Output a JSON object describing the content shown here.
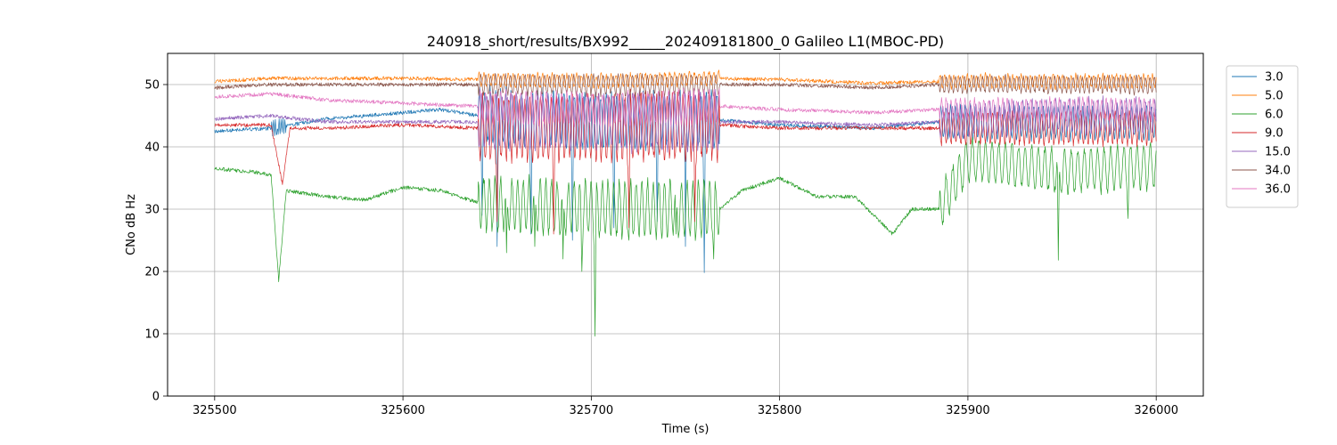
{
  "chart_data": {
    "type": "line",
    "title": "240918_short/results/BX992_____202409181800_0 Galileo L1(MBOC-PD)",
    "xlabel": "Time (s)",
    "ylabel": "CNo dB Hz",
    "xlim": [
      325475,
      326025
    ],
    "ylim": [
      0,
      55
    ],
    "xticks": [
      325500,
      325600,
      325700,
      325800,
      325900,
      326000
    ],
    "yticks": [
      0,
      10,
      20,
      30,
      40,
      50
    ],
    "grid": true,
    "legend_position": "upper-right-outside",
    "series": [
      {
        "name": "3.0",
        "color": "#1f77b4",
        "base": [
          [
            325500,
            42.5
          ],
          [
            325530,
            43
          ],
          [
            325560,
            44.5
          ],
          [
            325600,
            45.5
          ],
          [
            325620,
            46
          ],
          [
            325640,
            45
          ],
          [
            325700,
            44
          ],
          [
            325760,
            44.5
          ],
          [
            325800,
            43.5
          ],
          [
            325850,
            43
          ],
          [
            325885,
            44
          ],
          [
            325940,
            44
          ],
          [
            326000,
            44
          ]
        ],
        "spans": [
          {
            "x0": 325530,
            "x1": 325538,
            "amp": 1.5,
            "period": 1.0,
            "spikes": [
              [
                325533,
                42
              ]
            ]
          },
          {
            "x0": 325640,
            "x1": 325768,
            "amp": 5,
            "period": 2.8,
            "spikes": [
              [
                325642,
                29
              ],
              [
                325650,
                24
              ],
              [
                325668,
                26
              ],
              [
                325690,
                25
              ],
              [
                325712,
                27
              ],
              [
                325735,
                28
              ],
              [
                325750,
                24
              ],
              [
                325760,
                19.8
              ]
            ]
          },
          {
            "x0": 325885,
            "x1": 326000,
            "amp": 3,
            "period": 2.6,
            "spikes": []
          }
        ]
      },
      {
        "name": "5.0",
        "color": "#ff7f0e",
        "base": [
          [
            325500,
            50.5
          ],
          [
            325530,
            51
          ],
          [
            325560,
            51
          ],
          [
            325600,
            51
          ],
          [
            325640,
            50.8
          ],
          [
            325700,
            50.5
          ],
          [
            325760,
            51
          ],
          [
            325800,
            50.8
          ],
          [
            325850,
            50.2
          ],
          [
            325885,
            50.5
          ],
          [
            325940,
            50.5
          ],
          [
            326000,
            50.5
          ]
        ],
        "spans": [
          {
            "x0": 325640,
            "x1": 325768,
            "amp": 1.2,
            "period": 2.6,
            "spikes": []
          },
          {
            "x0": 325885,
            "x1": 326000,
            "amp": 1.2,
            "period": 2.4,
            "spikes": []
          }
        ]
      },
      {
        "name": "6.0",
        "color": "#2ca02c",
        "base": [
          [
            325500,
            36.5
          ],
          [
            325520,
            36
          ],
          [
            325530,
            35.5
          ],
          [
            325534,
            18.5
          ],
          [
            325538,
            33
          ],
          [
            325560,
            32
          ],
          [
            325580,
            31.5
          ],
          [
            325600,
            33.5
          ],
          [
            325620,
            33
          ],
          [
            325640,
            31
          ],
          [
            325700,
            30
          ],
          [
            325768,
            30
          ],
          [
            325780,
            33
          ],
          [
            325800,
            35
          ],
          [
            325820,
            32
          ],
          [
            325840,
            32
          ],
          [
            325860,
            26
          ],
          [
            325870,
            30
          ],
          [
            325885,
            30
          ],
          [
            325900,
            38
          ],
          [
            325950,
            36
          ],
          [
            326000,
            37
          ]
        ],
        "spans": [
          {
            "x0": 325640,
            "x1": 325768,
            "amp": 5,
            "period": 3.0,
            "spikes": [
              [
                325655,
                23
              ],
              [
                325670,
                24
              ],
              [
                325685,
                22
              ],
              [
                325695,
                20
              ],
              [
                325702,
                9.6
              ],
              [
                325720,
                25
              ],
              [
                325745,
                26
              ],
              [
                325765,
                22
              ]
            ]
          },
          {
            "x0": 325885,
            "x1": 326000,
            "amp": 4,
            "period": 3.5,
            "spikes": [
              [
                325948,
                21.8
              ],
              [
                325985,
                28.5
              ]
            ]
          }
        ]
      },
      {
        "name": "9.0",
        "color": "#d62728",
        "base": [
          [
            325500,
            43.5
          ],
          [
            325530,
            43.5
          ],
          [
            325536,
            34
          ],
          [
            325540,
            43
          ],
          [
            325560,
            43
          ],
          [
            325600,
            43.5
          ],
          [
            325640,
            43
          ],
          [
            325700,
            43
          ],
          [
            325768,
            43.5
          ],
          [
            325800,
            43
          ],
          [
            325850,
            43
          ],
          [
            325885,
            43
          ],
          [
            325940,
            43
          ],
          [
            326000,
            43
          ]
        ],
        "spans": [
          {
            "x0": 325640,
            "x1": 325768,
            "amp": 6,
            "period": 2.8,
            "spikes": [
              [
                325650,
                28
              ],
              [
                325680,
                26
              ],
              [
                325720,
                27
              ],
              [
                325755,
                28
              ]
            ]
          },
          {
            "x0": 325885,
            "x1": 326000,
            "amp": 3,
            "period": 2.6,
            "spikes": []
          }
        ]
      },
      {
        "name": "15.0",
        "color": "#9467bd",
        "base": [
          [
            325500,
            44.5
          ],
          [
            325530,
            45
          ],
          [
            325560,
            44
          ],
          [
            325600,
            44
          ],
          [
            325640,
            44
          ],
          [
            325700,
            44
          ],
          [
            325768,
            44
          ],
          [
            325800,
            44
          ],
          [
            325850,
            43.5
          ],
          [
            325885,
            44
          ],
          [
            325940,
            45
          ],
          [
            326000,
            45
          ]
        ],
        "spans": [
          {
            "x0": 325640,
            "x1": 325768,
            "amp": 5,
            "period": 2.7,
            "spikes": []
          },
          {
            "x0": 325885,
            "x1": 326000,
            "amp": 3,
            "period": 2.5,
            "spikes": []
          }
        ]
      },
      {
        "name": "34.0",
        "color": "#8c564b",
        "base": [
          [
            325500,
            49.5
          ],
          [
            325530,
            50
          ],
          [
            325560,
            50
          ],
          [
            325600,
            50
          ],
          [
            325640,
            50
          ],
          [
            325700,
            50
          ],
          [
            325768,
            50
          ],
          [
            325800,
            50
          ],
          [
            325850,
            49.5
          ],
          [
            325885,
            50
          ],
          [
            325940,
            50
          ],
          [
            326000,
            50
          ]
        ],
        "spans": [
          {
            "x0": 325640,
            "x1": 325768,
            "amp": 1.8,
            "period": 2.6,
            "spikes": []
          },
          {
            "x0": 325885,
            "x1": 326000,
            "amp": 1.5,
            "period": 2.4,
            "spikes": []
          }
        ]
      },
      {
        "name": "36.0",
        "color": "#e377c2",
        "base": [
          [
            325500,
            48
          ],
          [
            325530,
            48.5
          ],
          [
            325560,
            47.5
          ],
          [
            325600,
            47
          ],
          [
            325640,
            46.5
          ],
          [
            325700,
            46
          ],
          [
            325768,
            46.5
          ],
          [
            325800,
            46
          ],
          [
            325850,
            45.5
          ],
          [
            325885,
            46
          ],
          [
            325940,
            46
          ],
          [
            326000,
            46
          ]
        ],
        "spans": [
          {
            "x0": 325640,
            "x1": 325768,
            "amp": 3,
            "period": 2.7,
            "spikes": []
          },
          {
            "x0": 325885,
            "x1": 326000,
            "amp": 2,
            "period": 2.5,
            "spikes": []
          }
        ]
      }
    ]
  }
}
